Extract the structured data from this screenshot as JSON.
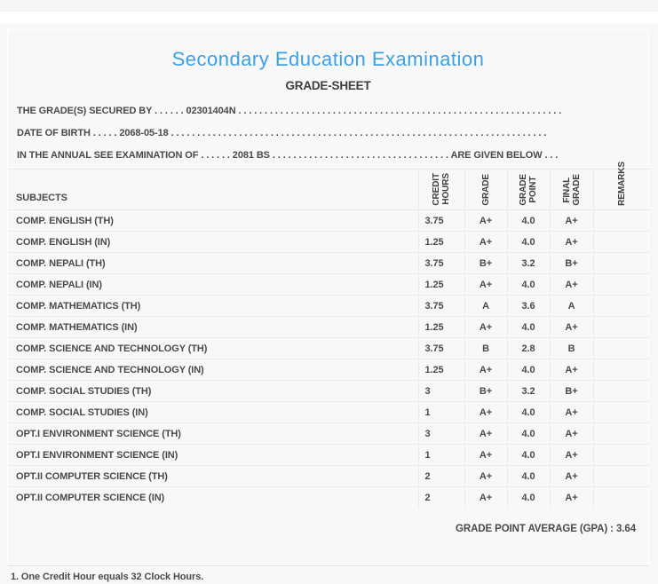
{
  "header": {
    "title": "Secondary Education Examination",
    "subtitle": "GRADE-SHEET"
  },
  "info_lines": {
    "secured_by": "THE GRADE(S) SECURED BY . . . . . . 02301404N . . . . . . . . . . . . . . . . . . . . . . . . . . . . . . . . . . . . . . . . . . . . . . . . . . . . . . . . . . . . . .",
    "date_of_birth": "DATE OF BIRTH . . . . . 2068-05-18 . . . . . . . . . . . . . . . . . . . . . . . . . . . . . . . . . . . . . . . . . . . . . . . . . . . . . . . . . . . . . . . . . . . . . . . .",
    "examination_of": "IN THE ANNUAL SEE EXAMINATION OF . . . . . . 2081 BS . . . . . . . . . . . . . . . . . . . . . . . . . . . . . . . . . . ARE GIVEN BELOW . . ."
  },
  "table": {
    "headers": {
      "subjects": "SUBJECTS",
      "credit_hours": "CREDIT\nHOURS",
      "grade": "GRADE",
      "grade_point": "GRADE\nPOINT",
      "final_grade": "FINAL\nGRADE",
      "remarks": "REMARKS"
    },
    "rows": [
      {
        "subject": "COMP. ENGLISH (TH)",
        "credit": "3.75",
        "grade": "A+",
        "point": "4.0",
        "final": "A+",
        "remarks": ""
      },
      {
        "subject": "COMP. ENGLISH (IN)",
        "credit": "1.25",
        "grade": "A+",
        "point": "4.0",
        "final": "A+",
        "remarks": ""
      },
      {
        "subject": "COMP. NEPALI (TH)",
        "credit": "3.75",
        "grade": "B+",
        "point": "3.2",
        "final": "B+",
        "remarks": ""
      },
      {
        "subject": "COMP. NEPALI (IN)",
        "credit": "1.25",
        "grade": "A+",
        "point": "4.0",
        "final": "A+",
        "remarks": ""
      },
      {
        "subject": "COMP. MATHEMATICS (TH)",
        "credit": "3.75",
        "grade": "A",
        "point": "3.6",
        "final": "A",
        "remarks": ""
      },
      {
        "subject": "COMP. MATHEMATICS (IN)",
        "credit": "1.25",
        "grade": "A+",
        "point": "4.0",
        "final": "A+",
        "remarks": ""
      },
      {
        "subject": "COMP. SCIENCE AND TECHNOLOGY (TH)",
        "credit": "3.75",
        "grade": "B",
        "point": "2.8",
        "final": "B",
        "remarks": ""
      },
      {
        "subject": "COMP. SCIENCE AND TECHNOLOGY (IN)",
        "credit": "1.25",
        "grade": "A+",
        "point": "4.0",
        "final": "A+",
        "remarks": ""
      },
      {
        "subject": "COMP. SOCIAL STUDIES (TH)",
        "credit": "3",
        "grade": "B+",
        "point": "3.2",
        "final": "B+",
        "remarks": ""
      },
      {
        "subject": "COMP. SOCIAL STUDIES (IN)",
        "credit": "1",
        "grade": "A+",
        "point": "4.0",
        "final": "A+",
        "remarks": ""
      },
      {
        "subject": "OPT.I ENVIRONMENT SCIENCE (TH)",
        "credit": "3",
        "grade": "A+",
        "point": "4.0",
        "final": "A+",
        "remarks": ""
      },
      {
        "subject": "OPT.I ENVIRONMENT SCIENCE (IN)",
        "credit": "1",
        "grade": "A+",
        "point": "4.0",
        "final": "A+",
        "remarks": ""
      },
      {
        "subject": "OPT.II COMPUTER SCIENCE (TH)",
        "credit": "2",
        "grade": "A+",
        "point": "4.0",
        "final": "A+",
        "remarks": ""
      },
      {
        "subject": "OPT.II COMPUTER SCIENCE (IN)",
        "credit": "2",
        "grade": "A+",
        "point": "4.0",
        "final": "A+",
        "remarks": ""
      }
    ]
  },
  "summary": {
    "gpa_line": "GRADE POINT AVERAGE (GPA) : 3.64"
  },
  "footnote": "1. One Credit Hour equals 32 Clock Hours.",
  "colors": {
    "accent_blue": "#3aa1e6",
    "text_dark": "#4a4a4a",
    "panel_bg": "#f8f8f8",
    "border_light": "#ececec"
  }
}
